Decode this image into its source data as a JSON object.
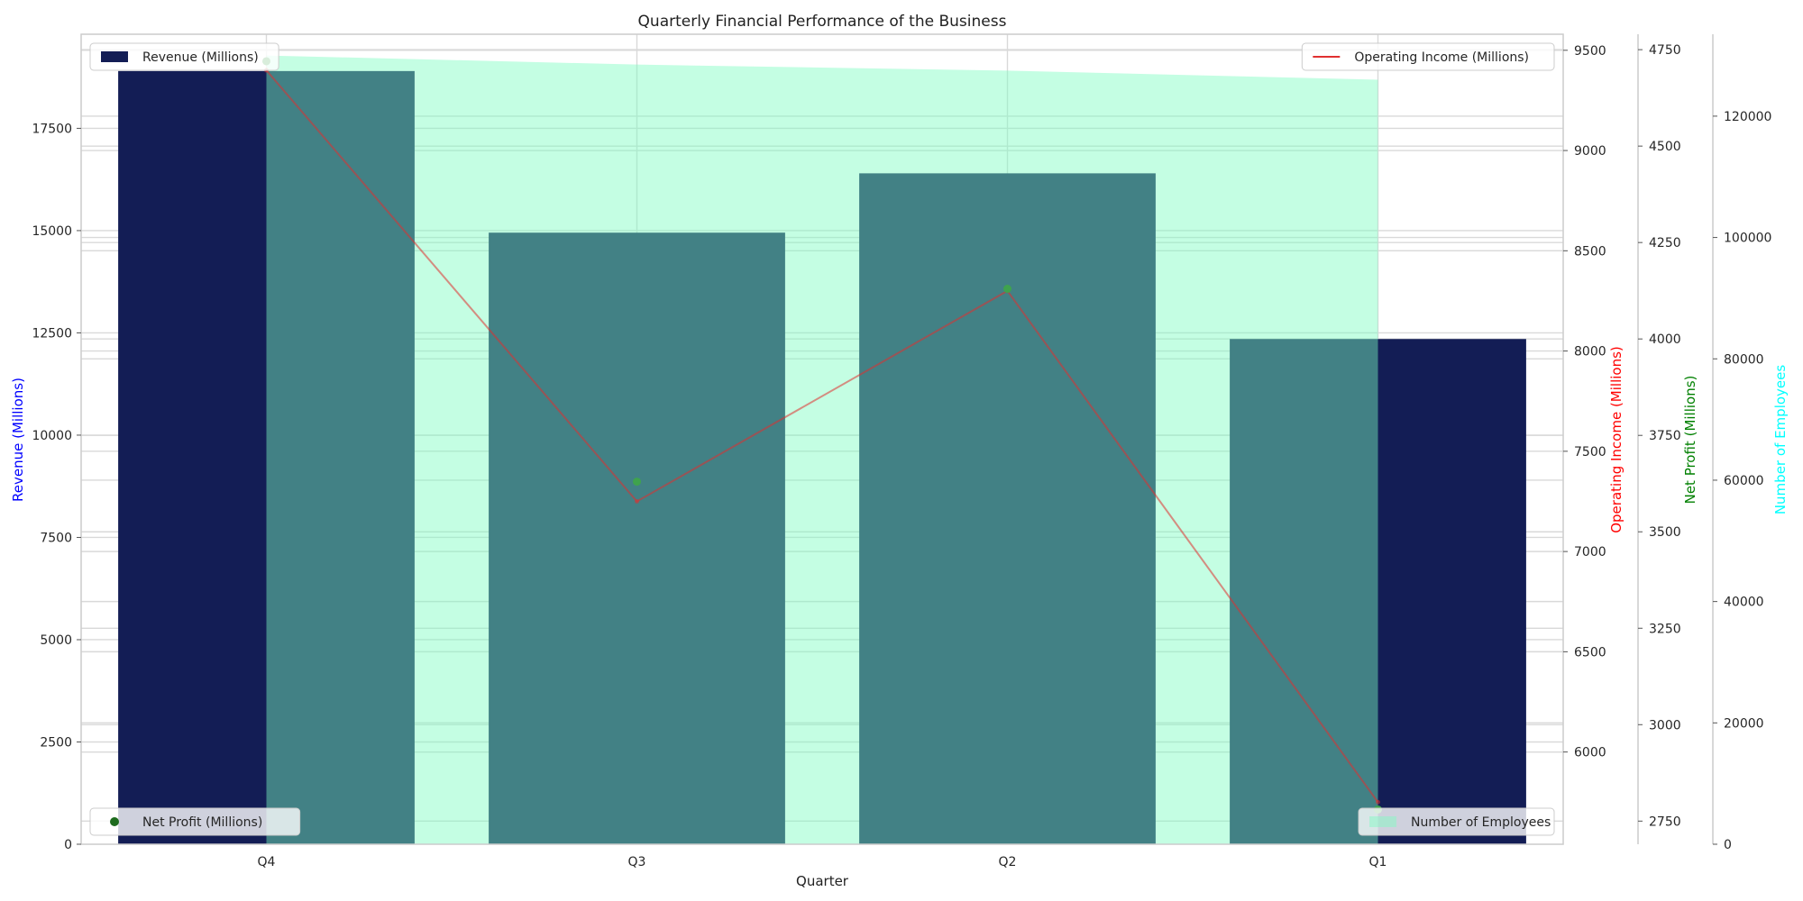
{
  "chart_data": {
    "type": "bar",
    "title": "Quarterly Financial Performance of the Business",
    "xlabel": "Quarter",
    "categories": [
      "Q4",
      "Q3",
      "Q2",
      "Q1"
    ],
    "grid": true,
    "series": [
      {
        "name": "Revenue (Millions)",
        "kind": "bar",
        "axis": "left",
        "color": "#131d55",
        "values": [
          18900,
          14950,
          16400,
          12350
        ]
      },
      {
        "name": "Operating Income (Millions)",
        "kind": "line",
        "axis": "right1",
        "color": "#e03030",
        "values": [
          9400,
          7250,
          8300,
          5750
        ]
      },
      {
        "name": "Net Profit (Millions)",
        "kind": "scatter",
        "axis": "right2",
        "color": "#1e6b1e",
        "values": [
          4720,
          3630,
          4130,
          2780
        ]
      },
      {
        "name": "Number of Employees",
        "kind": "area",
        "axis": "right3",
        "color": "#7dfcc0",
        "values": [
          130000,
          128500,
          127500,
          126000
        ]
      }
    ],
    "axes": {
      "left": {
        "label": "Revenue (Millions)",
        "label_color": "#0000ff",
        "ylim": [
          0,
          19800
        ],
        "ticks": [
          0,
          2500,
          5000,
          7500,
          10000,
          12500,
          15000,
          17500
        ]
      },
      "right1": {
        "label": "Operating Income (Millions)",
        "label_color": "#ff0000",
        "ylim": [
          5540,
          9580
        ],
        "ticks": [
          6000,
          6500,
          7000,
          7500,
          8000,
          8500,
          9000,
          9500
        ]
      },
      "right2": {
        "label": "Net Profit (Millions)",
        "label_color": "#008000",
        "ylim": [
          2690,
          4790
        ],
        "ticks": [
          2750,
          3000,
          3250,
          3500,
          3750,
          4000,
          4250,
          4500,
          4750
        ]
      },
      "right3": {
        "label": "Number of Employees",
        "label_color": "#00ffff",
        "ylim": [
          0,
          133500
        ],
        "ticks": [
          0,
          20000,
          40000,
          60000,
          80000,
          100000,
          120000
        ]
      }
    },
    "legends": [
      {
        "series": 0,
        "placement": "top-left"
      },
      {
        "series": 1,
        "placement": "top-right"
      },
      {
        "series": 2,
        "placement": "bottom-left"
      },
      {
        "series": 3,
        "placement": "bottom-right"
      }
    ]
  }
}
